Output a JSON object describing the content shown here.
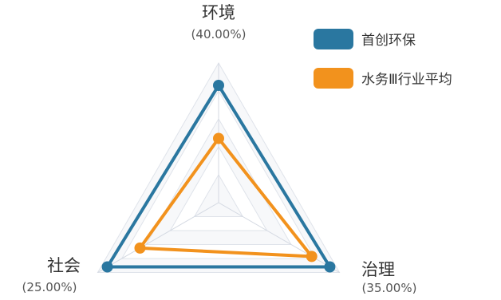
{
  "chart_data": {
    "type": "radar",
    "indicators": [
      {
        "name": "环境",
        "weight": "(40.00%)"
      },
      {
        "name": "治理",
        "weight": "(35.00%)"
      },
      {
        "name": "社会",
        "weight": "(25.00%)"
      }
    ],
    "range": [
      0,
      100
    ],
    "series": [
      {
        "name": "首创环保",
        "color": "#2A77A0",
        "values": [
          84,
          92,
          92
        ]
      },
      {
        "name": "水务Ⅲ行业平均",
        "color": "#F2921D",
        "values": [
          46,
          77,
          65
        ]
      }
    ],
    "legend_position": "top-right"
  }
}
